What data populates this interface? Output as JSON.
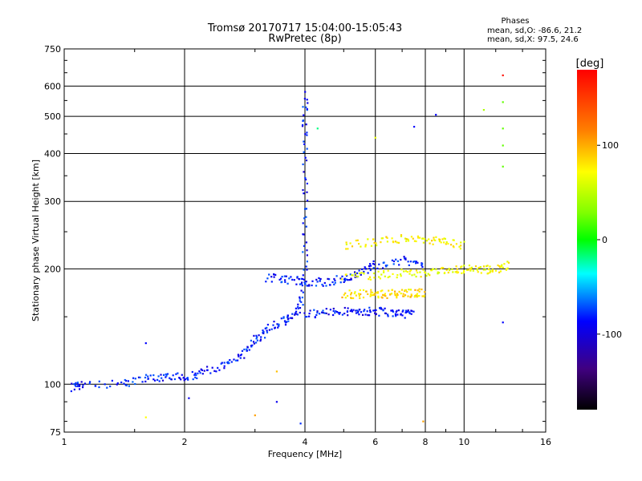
{
  "chart_data": {
    "type": "scatter",
    "title": "Tromsø 20170717 15:04:00-15:05:43",
    "subtitle": "RwPretec (8p)",
    "xlabel": "Frequency [MHz]",
    "ylabel": "Stationary phase Virtual Height [km]",
    "xscale": "log",
    "yscale": "log",
    "xlim": [
      1,
      16
    ],
    "ylim": [
      75,
      750
    ],
    "xticks": [
      1,
      2,
      4,
      6,
      8,
      10,
      16
    ],
    "yticks": [
      75,
      100,
      200,
      300,
      400,
      500,
      600,
      750
    ],
    "grid": true,
    "colorbar": {
      "label": "[deg]",
      "range": [
        -180,
        180
      ],
      "ticks": [
        100,
        0,
        -100
      ],
      "colormap": "rainbow"
    },
    "phases": {
      "header": "Phases",
      "o_mode": "mean, sd,O:  -86.6, 21.2",
      "x_mode": "mean, sd,X:  97.5, 24.6"
    },
    "traces": [
      {
        "name": "blue-o-trace",
        "phase_deg": -95,
        "points": [
          [
            1.05,
            98
          ],
          [
            1.1,
            99
          ],
          [
            1.4,
            100
          ],
          [
            1.6,
            103
          ],
          [
            1.8,
            105
          ],
          [
            2.0,
            104
          ],
          [
            2.2,
            107
          ],
          [
            2.5,
            112
          ],
          [
            2.8,
            120
          ],
          [
            3.0,
            130
          ],
          [
            3.2,
            138
          ],
          [
            3.5,
            145
          ],
          [
            3.7,
            150
          ],
          [
            3.9,
            160
          ],
          [
            4.0,
            200
          ],
          [
            4.0,
            300
          ],
          [
            4.0,
            450
          ],
          [
            4.0,
            580
          ]
        ]
      },
      {
        "name": "blue-band-150",
        "phase_deg": -100,
        "points": [
          [
            4.0,
            152
          ],
          [
            4.5,
            154
          ],
          [
            5.0,
            155
          ],
          [
            5.5,
            155
          ],
          [
            6.0,
            155
          ],
          [
            6.5,
            154
          ],
          [
            7.0,
            153
          ],
          [
            7.5,
            152
          ]
        ]
      },
      {
        "name": "blue-band-185",
        "phase_deg": -95,
        "points": [
          [
            3.2,
            190
          ],
          [
            3.6,
            188
          ],
          [
            4.0,
            185
          ],
          [
            4.5,
            185
          ],
          [
            5.0,
            188
          ],
          [
            5.5,
            195
          ],
          [
            6.0,
            205
          ],
          [
            7.0,
            210
          ],
          [
            8.0,
            205
          ]
        ]
      },
      {
        "name": "orange-band-172",
        "phase_deg": 110,
        "points": [
          [
            5.0,
            172
          ],
          [
            5.5,
            172
          ],
          [
            6.0,
            172
          ],
          [
            6.5,
            172
          ],
          [
            7.0,
            173
          ],
          [
            7.5,
            173
          ],
          [
            8.0,
            173
          ]
        ]
      },
      {
        "name": "yellow-band-195",
        "phase_deg": 95,
        "points": [
          [
            5.0,
            190
          ],
          [
            6.0,
            192
          ],
          [
            7.0,
            195
          ],
          [
            8.0,
            195
          ],
          [
            9.0,
            197
          ],
          [
            10.0,
            200
          ],
          [
            11.0,
            198
          ],
          [
            12.0,
            200
          ],
          [
            13.0,
            205
          ]
        ]
      },
      {
        "name": "yellow-spread-240",
        "phase_deg": 100,
        "points": [
          [
            5.0,
            230
          ],
          [
            6.0,
            235
          ],
          [
            7.0,
            240
          ],
          [
            8.0,
            238
          ],
          [
            9.0,
            235
          ],
          [
            10.0,
            230
          ]
        ]
      }
    ],
    "isolated_points": [
      {
        "freq": 12.5,
        "height": 640,
        "phase_deg": 175
      },
      {
        "freq": 12.5,
        "height": 545,
        "phase_deg": 30
      },
      {
        "freq": 12.5,
        "height": 465,
        "phase_deg": 30
      },
      {
        "freq": 12.5,
        "height": 420,
        "phase_deg": 30
      },
      {
        "freq": 12.5,
        "height": 370,
        "phase_deg": 30
      },
      {
        "freq": 11.2,
        "height": 520,
        "phase_deg": 60
      },
      {
        "freq": 8.5,
        "height": 505,
        "phase_deg": -100
      },
      {
        "freq": 7.5,
        "height": 470,
        "phase_deg": -100
      },
      {
        "freq": 6.0,
        "height": 440,
        "phase_deg": 90
      },
      {
        "freq": 4.3,
        "height": 465,
        "phase_deg": -20
      },
      {
        "freq": 1.6,
        "height": 82,
        "phase_deg": 100
      },
      {
        "freq": 3.0,
        "height": 83,
        "phase_deg": 130
      },
      {
        "freq": 7.9,
        "height": 80,
        "phase_deg": 130
      },
      {
        "freq": 3.9,
        "height": 79,
        "phase_deg": -90
      },
      {
        "freq": 3.4,
        "height": 90,
        "phase_deg": -105
      },
      {
        "freq": 2.05,
        "height": 92,
        "phase_deg": -105
      },
      {
        "freq": 1.6,
        "height": 128,
        "phase_deg": -100
      },
      {
        "freq": 3.4,
        "height": 108,
        "phase_deg": 120
      },
      {
        "freq": 12.5,
        "height": 145,
        "phase_deg": -100
      }
    ]
  }
}
